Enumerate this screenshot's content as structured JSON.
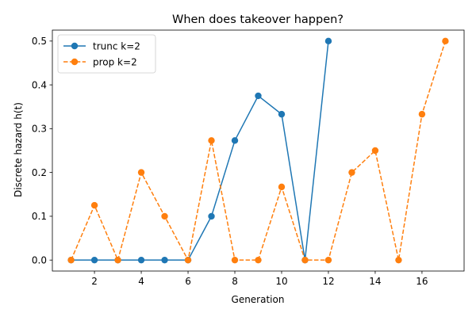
{
  "chart_data": {
    "type": "line",
    "title": "When does takeover happen?",
    "xlabel": "Generation",
    "ylabel": "Discrete hazard h(t)",
    "xlim": [
      0.2,
      17.8
    ],
    "ylim": [
      -0.025,
      0.525
    ],
    "xticks": [
      2,
      4,
      6,
      8,
      10,
      12,
      14,
      16
    ],
    "yticks": [
      0.0,
      0.1,
      0.2,
      0.3,
      0.4,
      0.5
    ],
    "ytick_labels": [
      "0.0",
      "0.1",
      "0.2",
      "0.3",
      "0.4",
      "0.5"
    ],
    "grid": false,
    "legend_position": "top-left",
    "series": [
      {
        "name": "trunc k=2",
        "color": "#1f77b4",
        "line_style": "solid",
        "marker": "circle",
        "x": [
          1,
          2,
          3,
          4,
          5,
          6,
          7,
          8,
          9,
          10,
          11,
          12
        ],
        "y": [
          0.0,
          0.0,
          0.0,
          0.0,
          0.0,
          0.0,
          0.1,
          0.273,
          0.375,
          0.333,
          0.0,
          0.5
        ]
      },
      {
        "name": "prop k=2",
        "color": "#ff7f0e",
        "line_style": "dashed",
        "marker": "circle",
        "x": [
          1,
          2,
          3,
          4,
          5,
          6,
          7,
          8,
          9,
          10,
          11,
          12,
          13,
          14,
          15,
          16,
          17
        ],
        "y": [
          0.0,
          0.125,
          0.0,
          0.2,
          0.1,
          0.0,
          0.273,
          0.0,
          0.0,
          0.167,
          0.0,
          0.0,
          0.2,
          0.25,
          0.0,
          0.333,
          0.5
        ]
      }
    ]
  }
}
